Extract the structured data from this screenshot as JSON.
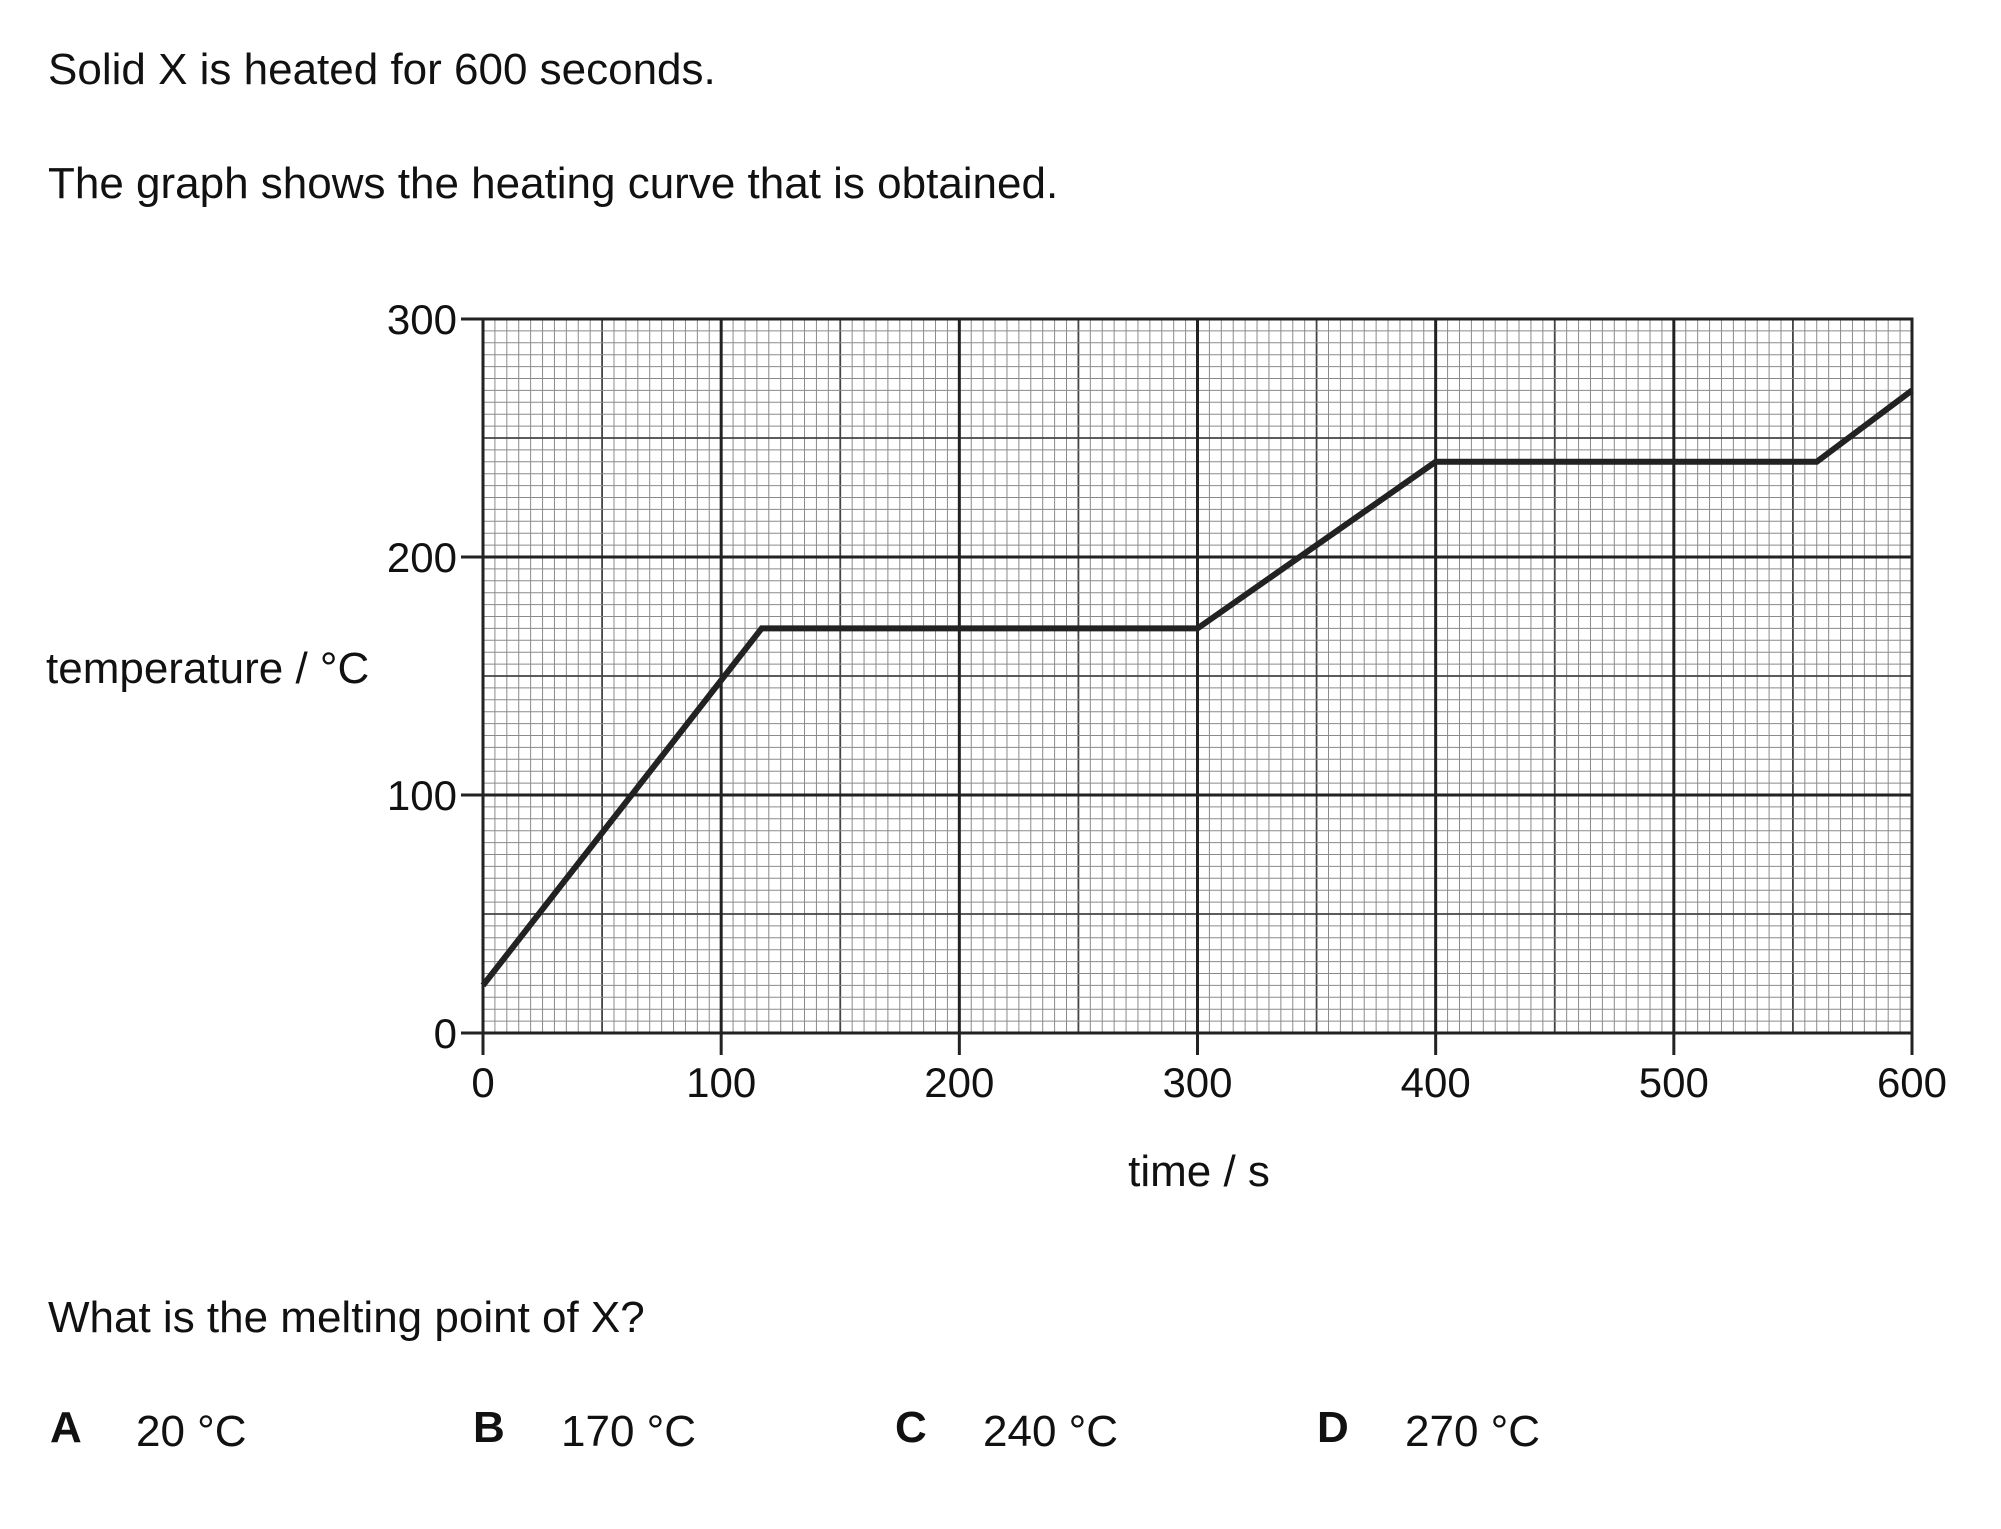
{
  "intro": {
    "line1": "Solid X is heated for 600 seconds.",
    "line2": "The graph shows the heating curve that is obtained."
  },
  "question": "What is the melting point of X?",
  "options": [
    {
      "letter": "A",
      "value": "20 °C"
    },
    {
      "letter": "B",
      "value": "170 °C"
    },
    {
      "letter": "C",
      "value": "240 °C"
    },
    {
      "letter": "D",
      "value": "270 °C"
    }
  ],
  "chart_data": {
    "type": "line",
    "title": "",
    "xlabel": "time / s",
    "ylabel": "temperature / °C",
    "xlim": [
      0,
      600
    ],
    "ylim": [
      0,
      300
    ],
    "x_ticks": [
      0,
      100,
      200,
      300,
      400,
      500,
      600
    ],
    "y_ticks": [
      0,
      100,
      200,
      300
    ],
    "grid": true,
    "series": [
      {
        "x": [
          0,
          117,
          300,
          400,
          560,
          600
        ],
        "y": [
          20,
          170,
          170,
          240,
          240,
          270
        ]
      }
    ]
  },
  "colors": {
    "grid_minor": "#8a8a8a",
    "grid_major": "#222222",
    "line": "#222222"
  }
}
